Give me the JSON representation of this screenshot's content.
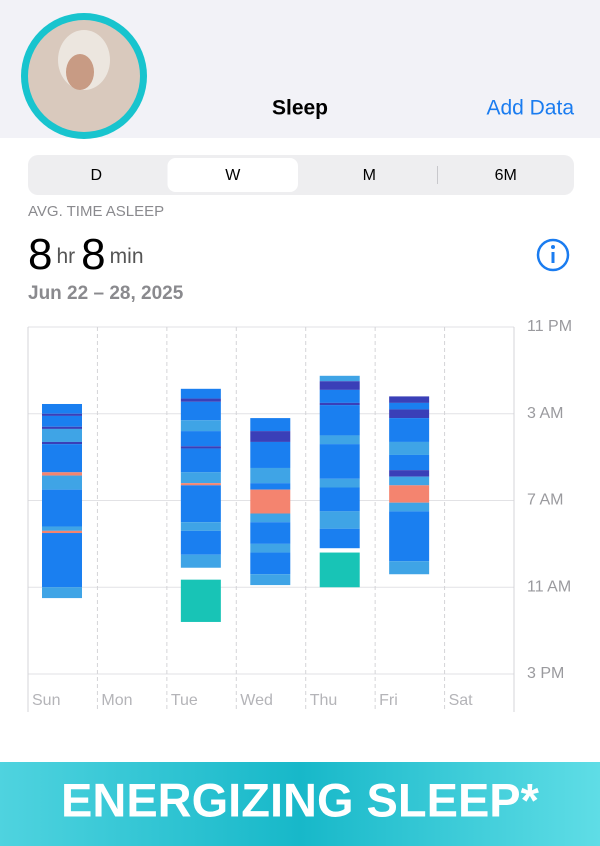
{
  "header": {
    "title": "Sleep",
    "action": "Add Data"
  },
  "tabs": {
    "items": [
      "D",
      "W",
      "M",
      "6M"
    ],
    "selected": 1
  },
  "summary": {
    "label": "AVG. TIME ASLEEP",
    "hours": 8,
    "hours_unit": "hr",
    "minutes": 8,
    "minutes_unit": "min",
    "date_range": "Jun 22 – 28, 2025"
  },
  "chart_data": {
    "type": "range_bar",
    "categories": [
      "Sun",
      "Mon",
      "Tue",
      "Wed",
      "Thu",
      "Fri",
      "Sat"
    ],
    "ylim": [
      23,
      39
    ],
    "yticks": [
      {
        "value": 23,
        "label": "11 PM"
      },
      {
        "value": 27,
        "label": "3 AM"
      },
      {
        "value": 31,
        "label": "7 AM"
      },
      {
        "value": 35,
        "label": "11 AM"
      },
      {
        "value": 39,
        "label": "3 PM"
      }
    ],
    "grid": true,
    "sessions": [
      [
        {
          "start": 26.55,
          "end": 27.0,
          "color": "#1a7ff0"
        },
        {
          "start": 27.0,
          "end": 27.1,
          "color": "#3a3fb8"
        },
        {
          "start": 27.1,
          "end": 27.6,
          "color": "#1a7ff0"
        },
        {
          "start": 27.6,
          "end": 27.7,
          "color": "#3a3fb8"
        },
        {
          "start": 27.7,
          "end": 28.3,
          "color": "#3fa4e6"
        },
        {
          "start": 28.3,
          "end": 28.4,
          "color": "#3a3fb8"
        },
        {
          "start": 28.4,
          "end": 29.7,
          "color": "#1a7ff0"
        },
        {
          "start": 29.7,
          "end": 29.85,
          "color": "#f4846f"
        },
        {
          "start": 29.85,
          "end": 30.5,
          "color": "#3fa4e6"
        },
        {
          "start": 30.5,
          "end": 32.2,
          "color": "#1a7ff0"
        },
        {
          "start": 32.2,
          "end": 32.4,
          "color": "#3fa4e6"
        },
        {
          "start": 32.4,
          "end": 32.5,
          "color": "#f4846f"
        },
        {
          "start": 32.5,
          "end": 35.0,
          "color": "#1a7ff0"
        },
        {
          "start": 35.0,
          "end": 35.5,
          "color": "#3fa4e6"
        }
      ],
      [],
      [
        {
          "start": 25.85,
          "end": 26.3,
          "color": "#1a7ff0"
        },
        {
          "start": 26.3,
          "end": 26.45,
          "color": "#3a3fb8"
        },
        {
          "start": 26.45,
          "end": 27.3,
          "color": "#1a7ff0"
        },
        {
          "start": 27.3,
          "end": 27.8,
          "color": "#3fa4e6"
        },
        {
          "start": 27.8,
          "end": 28.5,
          "color": "#1a7ff0"
        },
        {
          "start": 28.5,
          "end": 28.6,
          "color": "#3a3fb8"
        },
        {
          "start": 28.6,
          "end": 29.7,
          "color": "#1a7ff0"
        },
        {
          "start": 29.7,
          "end": 30.2,
          "color": "#3fa4e6"
        },
        {
          "start": 30.2,
          "end": 30.3,
          "color": "#f4846f"
        },
        {
          "start": 30.3,
          "end": 32.0,
          "color": "#1a7ff0"
        },
        {
          "start": 32.0,
          "end": 32.4,
          "color": "#3fa4e6"
        },
        {
          "start": 32.4,
          "end": 33.5,
          "color": "#1a7ff0"
        },
        {
          "start": 33.5,
          "end": 34.1,
          "color": "#3fa4e6"
        },
        {
          "start": 34.65,
          "end": 36.6,
          "color": "#18c4b6"
        }
      ],
      [
        {
          "start": 27.2,
          "end": 27.8,
          "color": "#1a7ff0"
        },
        {
          "start": 27.8,
          "end": 28.3,
          "color": "#3a3fb8"
        },
        {
          "start": 28.3,
          "end": 29.5,
          "color": "#1a7ff0"
        },
        {
          "start": 29.5,
          "end": 30.2,
          "color": "#3fa4e6"
        },
        {
          "start": 30.2,
          "end": 30.5,
          "color": "#1a7ff0"
        },
        {
          "start": 30.5,
          "end": 31.6,
          "color": "#f4846f"
        },
        {
          "start": 31.6,
          "end": 32.0,
          "color": "#3fa4e6"
        },
        {
          "start": 32.0,
          "end": 33.0,
          "color": "#1a7ff0"
        },
        {
          "start": 33.0,
          "end": 33.4,
          "color": "#3fa4e6"
        },
        {
          "start": 33.4,
          "end": 34.4,
          "color": "#1a7ff0"
        },
        {
          "start": 34.4,
          "end": 34.9,
          "color": "#3fa4e6"
        }
      ],
      [
        {
          "start": 25.25,
          "end": 25.5,
          "color": "#3fa4e6"
        },
        {
          "start": 25.5,
          "end": 25.9,
          "color": "#3a3fb8"
        },
        {
          "start": 25.9,
          "end": 26.5,
          "color": "#1a7ff0"
        },
        {
          "start": 26.5,
          "end": 26.6,
          "color": "#3a3fb8"
        },
        {
          "start": 26.6,
          "end": 28.0,
          "color": "#1a7ff0"
        },
        {
          "start": 28.0,
          "end": 28.4,
          "color": "#3fa4e6"
        },
        {
          "start": 28.4,
          "end": 30.0,
          "color": "#1a7ff0"
        },
        {
          "start": 30.0,
          "end": 30.4,
          "color": "#3fa4e6"
        },
        {
          "start": 30.4,
          "end": 31.5,
          "color": "#1a7ff0"
        },
        {
          "start": 31.5,
          "end": 32.3,
          "color": "#3fa4e6"
        },
        {
          "start": 32.3,
          "end": 33.2,
          "color": "#1a7ff0"
        },
        {
          "start": 33.4,
          "end": 35.0,
          "color": "#18c4b6"
        }
      ],
      [
        {
          "start": 26.2,
          "end": 26.5,
          "color": "#3a3fb8"
        },
        {
          "start": 26.5,
          "end": 26.8,
          "color": "#1a7ff0"
        },
        {
          "start": 26.8,
          "end": 27.2,
          "color": "#3a3fb8"
        },
        {
          "start": 27.2,
          "end": 28.3,
          "color": "#1a7ff0"
        },
        {
          "start": 28.3,
          "end": 28.9,
          "color": "#3fa4e6"
        },
        {
          "start": 28.9,
          "end": 29.6,
          "color": "#1a7ff0"
        },
        {
          "start": 29.6,
          "end": 29.9,
          "color": "#3a3fb8"
        },
        {
          "start": 29.9,
          "end": 30.3,
          "color": "#3fa4e6"
        },
        {
          "start": 30.3,
          "end": 31.1,
          "color": "#f4846f"
        },
        {
          "start": 31.1,
          "end": 31.5,
          "color": "#3fa4e6"
        },
        {
          "start": 31.5,
          "end": 33.8,
          "color": "#1a7ff0"
        },
        {
          "start": 33.8,
          "end": 34.4,
          "color": "#3fa4e6"
        }
      ],
      []
    ]
  },
  "banner": {
    "text": "ENERGIZING SLEEP*"
  }
}
